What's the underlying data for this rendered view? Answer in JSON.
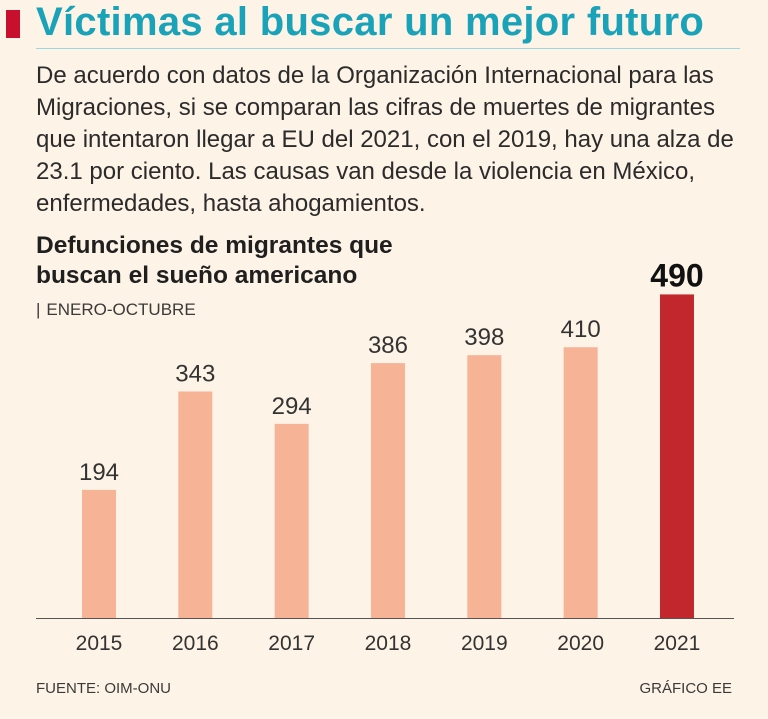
{
  "header": {
    "title": "Víctimas al buscar un mejor futuro"
  },
  "intro": "De acuerdo con datos de la Organización Internacional para las Migraciones, si se comparan las cifras de muertes de migrantes que intentaron llegar a EU del 2021, con el 2019, hay una alza de 23.1 por ciento. Las causas van desde la violencia en México, enfermedades, hasta ahogamientos.",
  "chart_data": {
    "type": "bar",
    "title": "Defunciones de migrantes que buscan el sueño americano",
    "subtitle": "ENERO-OCTUBRE",
    "subtitle_separator": "|",
    "categories": [
      "2015",
      "2016",
      "2017",
      "2018",
      "2019",
      "2020",
      "2021"
    ],
    "values": [
      194,
      343,
      294,
      386,
      398,
      410,
      490
    ],
    "value_labels": [
      "194",
      "343",
      "294",
      "386",
      "398",
      "410",
      "490"
    ],
    "highlight_index": 6,
    "ylim": [
      0,
      530
    ],
    "grid": false,
    "colors": {
      "bar": "#f7b396",
      "highlight": "#c1272d",
      "axis": "#555555",
      "label": "#333333"
    }
  },
  "footer": {
    "source": "FUENTE: OIM-ONU",
    "credit": "GRÁFICO EE"
  }
}
